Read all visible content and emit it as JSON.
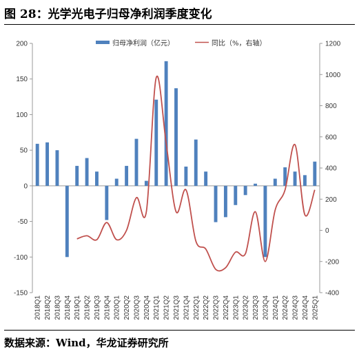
{
  "header": {
    "title": "图 28：光学光电子归母净利润季度变化"
  },
  "footer": {
    "source": "数据来源：Wind，华龙证券研究所"
  },
  "colors": {
    "bar": "#4f81bd",
    "line": "#c0504d",
    "axis": "#999999"
  },
  "chart_data": {
    "type": "bar+line",
    "categories": [
      "2018Q1",
      "2018Q2",
      "2018Q3",
      "2018Q4",
      "2019Q1",
      "2019Q2",
      "2019Q3",
      "2019Q4",
      "2020Q1",
      "2020Q2",
      "2020Q3",
      "2020Q4",
      "2021Q1",
      "2021Q2",
      "2021Q3",
      "2021Q4",
      "2022Q1",
      "2022Q2",
      "2022Q3",
      "2022Q4",
      "2023Q1",
      "2023Q2",
      "2023Q3",
      "2023Q4",
      "2024Q1",
      "2024Q2",
      "2024Q3",
      "2024Q4",
      "2025Q1"
    ],
    "series": [
      {
        "name": "归母净利润（亿元）",
        "type": "bar",
        "axis": "left",
        "values": [
          59,
          61,
          50,
          -100,
          28,
          39,
          20,
          -48,
          10,
          28,
          66,
          7,
          121,
          175,
          137,
          27,
          65,
          20,
          -51,
          -44,
          -27,
          -13,
          3,
          -100,
          10,
          26,
          20,
          15,
          34
        ]
      },
      {
        "name": "同比（%，右轴）",
        "type": "line",
        "axis": "right",
        "values": [
          null,
          null,
          null,
          null,
          -55,
          -35,
          -60,
          50,
          -60,
          0,
          210,
          120,
          980,
          560,
          120,
          260,
          -70,
          -120,
          -250,
          -240,
          -140,
          -150,
          120,
          -200,
          130,
          260,
          550,
          100,
          260
        ]
      }
    ],
    "ylim_left": [
      -150,
      200
    ],
    "yticks_left": [
      200,
      150,
      100,
      50,
      0,
      -50,
      -100,
      -150
    ],
    "ylim_right": [
      -400,
      1200
    ],
    "yticks_right": [
      1200,
      1000,
      800,
      600,
      400,
      200,
      0,
      -200,
      -400
    ],
    "legend_position": "top"
  }
}
